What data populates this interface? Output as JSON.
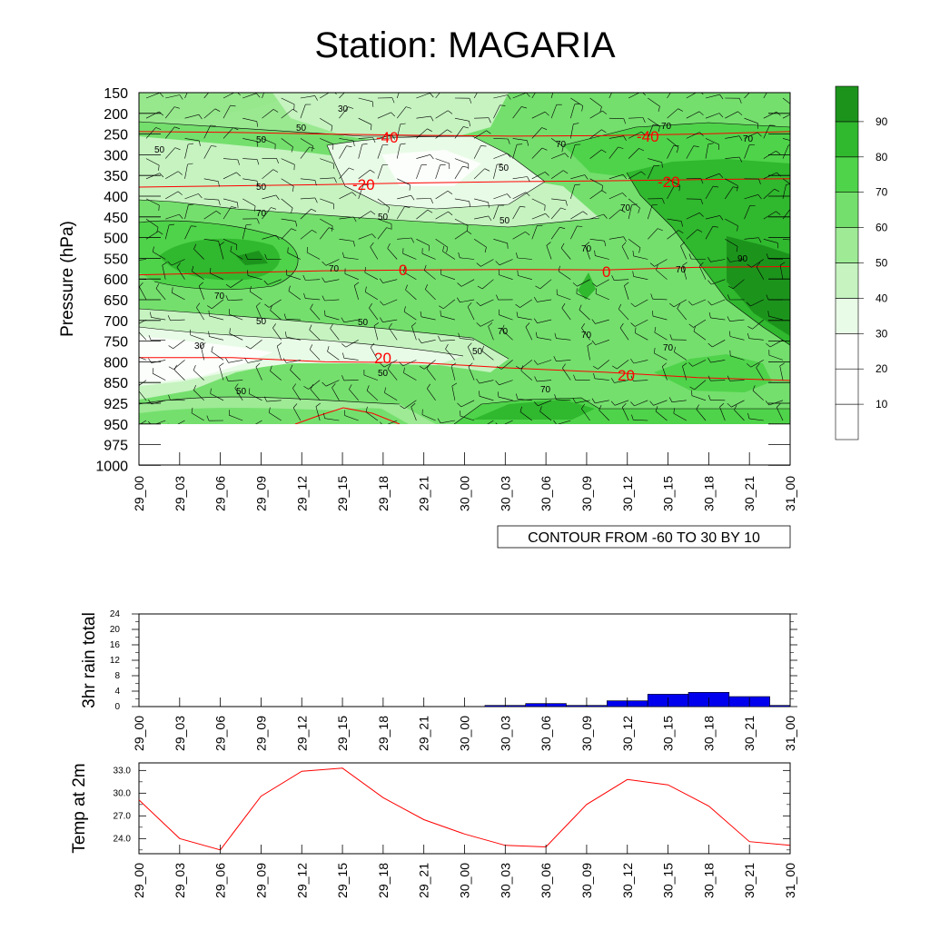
{
  "title": "Station: MAGARIA",
  "chart_data": [
    {
      "type": "heatmap",
      "subtype": "contour-time-height",
      "ylabel": "Pressure (hPa)",
      "y_ticks": [
        "150",
        "200",
        "250",
        "300",
        "350",
        "400",
        "450",
        "500",
        "550",
        "600",
        "650",
        "700",
        "750",
        "800",
        "850",
        "925",
        "950",
        "975",
        "1000"
      ],
      "x_ticks": [
        "29_00",
        "29_03",
        "29_06",
        "29_09",
        "29_12",
        "29_15",
        "29_18",
        "29_21",
        "30_00",
        "30_03",
        "30_06",
        "30_09",
        "30_12",
        "30_15",
        "30_18",
        "30_21",
        "31_00"
      ],
      "contour_info": "CONTOUR FROM -60 TO 30 BY 10",
      "colorbar": {
        "labels": [
          "10",
          "20",
          "30",
          "40",
          "50",
          "60",
          "70",
          "80",
          "90"
        ],
        "colors": [
          "#ffffff",
          "#ffffff",
          "#ffffff",
          "#e8fbe6",
          "#c6f3c0",
          "#9eea95",
          "#74df6d",
          "#4fd34a",
          "#30b82e",
          "#1c941c"
        ]
      },
      "humidity_labels": [
        "30",
        "50",
        "50",
        "50",
        "50",
        "50",
        "50",
        "50",
        "50",
        "50",
        "50",
        "50",
        "50",
        "70",
        "70",
        "70",
        "70",
        "70",
        "70",
        "70",
        "70",
        "70",
        "70",
        "70",
        "70",
        "90"
      ],
      "temperature_labels": [
        "-40",
        "-40",
        "-20",
        "-20",
        "0",
        "0",
        "20",
        "20"
      ],
      "temperature_levels_hpa": [
        {
          "value": -40,
          "pressure": [
            244,
            246,
            250,
            253,
            255,
            254,
            250,
            244
          ]
        },
        {
          "value": -20,
          "pressure": [
            378,
            375,
            372,
            368,
            365,
            363,
            360,
            358
          ]
        },
        {
          "value": 0,
          "pressure": [
            590,
            585,
            580,
            578,
            577,
            578,
            572,
            570
          ]
        },
        {
          "value": 20,
          "pressure": [
            790,
            790,
            800,
            802,
            815,
            825,
            838,
            845
          ]
        }
      ]
    },
    {
      "type": "bar",
      "ylabel": "3hr rain total",
      "yticks": [
        "0",
        "4",
        "8",
        "12",
        "16",
        "20",
        "24"
      ],
      "ylim": [
        0,
        24
      ],
      "categories": [
        "29_00",
        "29_03",
        "29_06",
        "29_09",
        "29_12",
        "29_15",
        "29_18",
        "29_21",
        "30_00",
        "30_03",
        "30_06",
        "30_09",
        "30_12",
        "30_15",
        "30_18",
        "30_21",
        "31_00"
      ],
      "values": [
        0,
        0,
        0,
        0,
        0,
        0,
        0,
        0,
        0,
        0.3,
        0.8,
        0.3,
        1.5,
        3.2,
        3.7,
        2.6,
        0.3
      ],
      "color": "#0000ee"
    },
    {
      "type": "line",
      "ylabel": "Temp at 2m",
      "yticks": [
        "24.0",
        "27.0",
        "30.0",
        "33.0"
      ],
      "ylim": [
        22,
        34
      ],
      "categories": [
        "29_00",
        "29_03",
        "29_06",
        "29_09",
        "29_12",
        "29_15",
        "29_18",
        "29_21",
        "30_00",
        "30_03",
        "30_06",
        "30_09",
        "30_12",
        "30_15",
        "30_18",
        "30_21",
        "31_00"
      ],
      "values": [
        29.1,
        24.0,
        22.5,
        29.6,
        32.9,
        33.3,
        29.4,
        26.5,
        24.6,
        23.1,
        22.9,
        28.5,
        31.8,
        31.1,
        28.3,
        23.6,
        23.1
      ],
      "color": "#ff0000"
    }
  ]
}
